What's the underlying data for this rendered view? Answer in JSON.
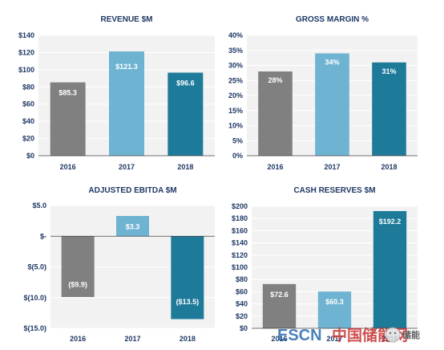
{
  "chart_data": [
    {
      "type": "bar",
      "title": "REVENUE $M",
      "categories": [
        "2016",
        "2017",
        "2018"
      ],
      "values": [
        85.3,
        121.3,
        96.6
      ],
      "data_labels": [
        "$85.3",
        "$121.3",
        "$96.6"
      ],
      "ylim": [
        0,
        140
      ],
      "yticks": [
        0,
        20,
        40,
        60,
        80,
        100,
        120,
        140
      ],
      "ytick_labels": [
        "$0",
        "$20",
        "$40",
        "$60",
        "$80",
        "$100",
        "$120",
        "$140"
      ],
      "colors": [
        "#808080",
        "#6fb3d2",
        "#1d7a99"
      ],
      "grid": true
    },
    {
      "type": "bar",
      "title": "GROSS MARGIN %",
      "categories": [
        "2016",
        "2017",
        "2018"
      ],
      "values": [
        28,
        34,
        31
      ],
      "data_labels": [
        "28%",
        "34%",
        "31%"
      ],
      "ylim": [
        0,
        40
      ],
      "yticks": [
        0,
        5,
        10,
        15,
        20,
        25,
        30,
        35,
        40
      ],
      "ytick_labels": [
        "0%",
        "5%",
        "10%",
        "15%",
        "20%",
        "25%",
        "30%",
        "35%",
        "40%"
      ],
      "colors": [
        "#808080",
        "#6fb3d2",
        "#1d7a99"
      ],
      "grid": true
    },
    {
      "type": "bar",
      "title": "ADJUSTED EBITDA $M",
      "categories": [
        "2016",
        "2017",
        "2018"
      ],
      "values": [
        -9.9,
        3.3,
        -13.5
      ],
      "data_labels": [
        "($9.9)",
        "$3.3",
        "($13.5)"
      ],
      "ylim": [
        -15,
        5
      ],
      "yticks": [
        -15,
        -10,
        -5,
        0,
        5
      ],
      "ytick_labels": [
        "$(15.0)",
        "$(10.0)",
        "$(5.0)",
        "$-",
        "$5.0"
      ],
      "colors": [
        "#808080",
        "#6fb3d2",
        "#1d7a99"
      ],
      "grid": true
    },
    {
      "type": "bar",
      "title": "CASH RESERVES $M",
      "categories": [
        "2016",
        "2017",
        "2018"
      ],
      "values": [
        72.6,
        60.3,
        192.2
      ],
      "data_labels": [
        "$72.6",
        "$60.3",
        "$192.2"
      ],
      "ylim": [
        0,
        200
      ],
      "yticks": [
        0,
        20,
        40,
        60,
        80,
        100,
        120,
        140,
        160,
        180,
        200
      ],
      "ytick_labels": [
        "$0",
        "$20",
        "$40",
        "$60",
        "$80",
        "$100",
        "$120",
        "$140",
        "$160",
        "$180",
        "$200"
      ],
      "colors": [
        "#808080",
        "#6fb3d2",
        "#1d7a99"
      ],
      "grid": true
    }
  ],
  "watermark": {
    "logo_text": "ESCN",
    "cn_text": "中国储能网",
    "badge_text": "储能",
    "colors": {
      "escn": "#2b6cb0",
      "cn": "#c53030"
    }
  }
}
